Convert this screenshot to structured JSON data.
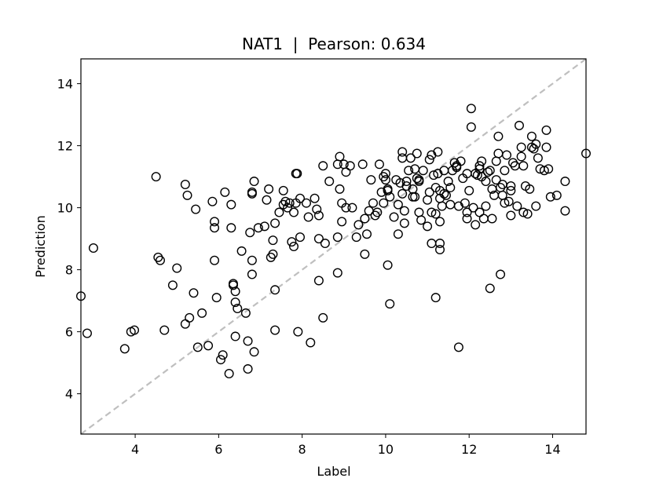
{
  "chart_data": {
    "type": "scatter",
    "title": "NAT1  |  Pearson: 0.634",
    "xlabel": "Label",
    "ylabel": "Prediction",
    "xlim": [
      2.7,
      14.8
    ],
    "ylim": [
      2.7,
      14.8
    ],
    "xticks": [
      4,
      6,
      8,
      10,
      12,
      14
    ],
    "yticks": [
      4,
      6,
      8,
      10,
      12,
      14
    ],
    "xtick_labels": [
      "4",
      "6",
      "8",
      "10",
      "12",
      "14"
    ],
    "ytick_labels": [
      "4",
      "6",
      "8",
      "10",
      "12",
      "14"
    ],
    "grid": false,
    "reference_line": {
      "style": "dashed",
      "color": "#bfbfbf",
      "from": [
        2.7,
        2.7
      ],
      "to": [
        14.8,
        14.8
      ]
    },
    "marker": {
      "shape": "open-circle",
      "edge_color": "#000000"
    },
    "points": [
      [
        2.7,
        7.15
      ],
      [
        2.85,
        5.95
      ],
      [
        3.0,
        8.7
      ],
      [
        3.75,
        5.45
      ],
      [
        3.9,
        6.0
      ],
      [
        3.98,
        6.05
      ],
      [
        4.5,
        11.0
      ],
      [
        4.55,
        8.4
      ],
      [
        4.6,
        8.3
      ],
      [
        4.7,
        6.05
      ],
      [
        4.9,
        7.5
      ],
      [
        5.0,
        8.05
      ],
      [
        5.2,
        10.75
      ],
      [
        5.25,
        10.4
      ],
      [
        5.2,
        6.25
      ],
      [
        5.3,
        6.45
      ],
      [
        5.4,
        7.25
      ],
      [
        5.45,
        9.95
      ],
      [
        5.5,
        5.5
      ],
      [
        5.6,
        6.6
      ],
      [
        5.75,
        5.55
      ],
      [
        5.85,
        10.2
      ],
      [
        5.9,
        9.55
      ],
      [
        5.9,
        9.35
      ],
      [
        5.9,
        8.3
      ],
      [
        5.95,
        7.1
      ],
      [
        6.05,
        5.1
      ],
      [
        6.1,
        5.25
      ],
      [
        6.15,
        10.5
      ],
      [
        6.25,
        4.65
      ],
      [
        6.3,
        10.1
      ],
      [
        6.3,
        9.35
      ],
      [
        6.35,
        7.55
      ],
      [
        6.35,
        7.5
      ],
      [
        6.4,
        6.95
      ],
      [
        6.4,
        7.3
      ],
      [
        6.45,
        6.75
      ],
      [
        6.4,
        5.85
      ],
      [
        6.55,
        8.6
      ],
      [
        6.65,
        6.6
      ],
      [
        6.7,
        5.7
      ],
      [
        6.7,
        4.8
      ],
      [
        6.75,
        9.2
      ],
      [
        6.8,
        10.5
      ],
      [
        6.8,
        10.45
      ],
      [
        6.85,
        10.85
      ],
      [
        6.8,
        8.3
      ],
      [
        6.8,
        7.85
      ],
      [
        6.85,
        5.35
      ],
      [
        6.95,
        9.35
      ],
      [
        7.1,
        9.4
      ],
      [
        7.15,
        10.25
      ],
      [
        7.2,
        10.6
      ],
      [
        7.25,
        8.4
      ],
      [
        7.3,
        8.5
      ],
      [
        7.3,
        8.95
      ],
      [
        7.35,
        9.5
      ],
      [
        7.35,
        7.35
      ],
      [
        7.35,
        6.05
      ],
      [
        7.45,
        9.85
      ],
      [
        7.55,
        10.55
      ],
      [
        7.55,
        10.1
      ],
      [
        7.6,
        10.2
      ],
      [
        7.65,
        10.0
      ],
      [
        7.7,
        10.15
      ],
      [
        7.75,
        8.9
      ],
      [
        7.8,
        9.85
      ],
      [
        7.8,
        8.75
      ],
      [
        7.85,
        10.15
      ],
      [
        7.85,
        11.1
      ],
      [
        7.88,
        11.1
      ],
      [
        7.9,
        6.0
      ],
      [
        7.95,
        10.3
      ],
      [
        7.95,
        9.05
      ],
      [
        8.1,
        10.15
      ],
      [
        8.15,
        9.7
      ],
      [
        8.2,
        5.65
      ],
      [
        8.3,
        10.3
      ],
      [
        8.35,
        9.95
      ],
      [
        8.4,
        9.75
      ],
      [
        8.4,
        9.0
      ],
      [
        8.4,
        7.65
      ],
      [
        8.5,
        6.45
      ],
      [
        8.5,
        11.35
      ],
      [
        8.55,
        8.85
      ],
      [
        8.65,
        10.85
      ],
      [
        8.85,
        11.4
      ],
      [
        8.85,
        9.05
      ],
      [
        8.85,
        7.9
      ],
      [
        8.9,
        11.65
      ],
      [
        8.9,
        10.6
      ],
      [
        8.95,
        9.55
      ],
      [
        8.95,
        10.15
      ],
      [
        9.0,
        11.4
      ],
      [
        9.05,
        11.15
      ],
      [
        9.05,
        10.0
      ],
      [
        9.15,
        11.35
      ],
      [
        9.2,
        10.0
      ],
      [
        9.3,
        9.05
      ],
      [
        9.35,
        9.45
      ],
      [
        9.45,
        11.4
      ],
      [
        9.5,
        8.5
      ],
      [
        9.5,
        9.65
      ],
      [
        9.55,
        9.15
      ],
      [
        9.6,
        9.9
      ],
      [
        9.65,
        10.9
      ],
      [
        9.7,
        10.15
      ],
      [
        9.75,
        9.75
      ],
      [
        9.8,
        9.85
      ],
      [
        9.85,
        11.4
      ],
      [
        9.9,
        10.5
      ],
      [
        9.95,
        11.0
      ],
      [
        9.95,
        10.15
      ],
      [
        10.0,
        10.9
      ],
      [
        10.0,
        11.1
      ],
      [
        10.05,
        10.55
      ],
      [
        10.05,
        10.6
      ],
      [
        10.1,
        10.35
      ],
      [
        10.05,
        8.15
      ],
      [
        10.1,
        6.9
      ],
      [
        10.2,
        9.7
      ],
      [
        10.25,
        10.9
      ],
      [
        10.3,
        9.15
      ],
      [
        10.3,
        10.1
      ],
      [
        10.35,
        10.8
      ],
      [
        10.4,
        11.6
      ],
      [
        10.4,
        11.8
      ],
      [
        10.4,
        10.45
      ],
      [
        10.45,
        9.9
      ],
      [
        10.45,
        9.5
      ],
      [
        10.5,
        10.7
      ],
      [
        10.5,
        10.85
      ],
      [
        10.55,
        11.2
      ],
      [
        10.6,
        11.6
      ],
      [
        10.65,
        10.6
      ],
      [
        10.65,
        10.35
      ],
      [
        10.7,
        10.35
      ],
      [
        10.7,
        11.25
      ],
      [
        10.75,
        10.95
      ],
      [
        10.75,
        11.75
      ],
      [
        10.8,
        10.85
      ],
      [
        10.8,
        10.9
      ],
      [
        10.8,
        9.85
      ],
      [
        10.85,
        9.6
      ],
      [
        10.9,
        11.2
      ],
      [
        11.0,
        10.25
      ],
      [
        11.0,
        9.4
      ],
      [
        11.05,
        10.5
      ],
      [
        11.05,
        11.55
      ],
      [
        11.1,
        11.7
      ],
      [
        11.1,
        8.85
      ],
      [
        11.1,
        9.85
      ],
      [
        11.15,
        11.05
      ],
      [
        11.2,
        10.65
      ],
      [
        11.2,
        9.8
      ],
      [
        11.2,
        7.1
      ],
      [
        11.25,
        11.8
      ],
      [
        11.25,
        11.1
      ],
      [
        11.3,
        10.55
      ],
      [
        11.3,
        10.3
      ],
      [
        11.3,
        9.55
      ],
      [
        11.3,
        8.85
      ],
      [
        11.3,
        8.65
      ],
      [
        11.35,
        10.05
      ],
      [
        11.4,
        11.2
      ],
      [
        11.4,
        10.45
      ],
      [
        11.45,
        10.4
      ],
      [
        11.5,
        10.85
      ],
      [
        11.55,
        10.65
      ],
      [
        11.55,
        10.1
      ],
      [
        11.6,
        11.2
      ],
      [
        11.65,
        11.45
      ],
      [
        11.7,
        11.35
      ],
      [
        11.7,
        11.3
      ],
      [
        11.75,
        5.5
      ],
      [
        11.75,
        10.05
      ],
      [
        11.8,
        11.5
      ],
      [
        11.85,
        10.95
      ],
      [
        11.9,
        10.15
      ],
      [
        11.95,
        11.1
      ],
      [
        11.95,
        9.85
      ],
      [
        11.95,
        9.65
      ],
      [
        12.0,
        10.55
      ],
      [
        12.05,
        13.2
      ],
      [
        12.05,
        12.6
      ],
      [
        12.1,
        10.0
      ],
      [
        12.15,
        11.1
      ],
      [
        12.15,
        9.45
      ],
      [
        12.2,
        11.05
      ],
      [
        12.25,
        11.35
      ],
      [
        12.25,
        9.85
      ],
      [
        12.25,
        11.25
      ],
      [
        12.3,
        11.5
      ],
      [
        12.3,
        11.0
      ],
      [
        12.35,
        9.65
      ],
      [
        12.4,
        10.85
      ],
      [
        12.4,
        10.05
      ],
      [
        12.45,
        11.15
      ],
      [
        12.5,
        11.2
      ],
      [
        12.5,
        7.4
      ],
      [
        12.55,
        10.6
      ],
      [
        12.55,
        9.65
      ],
      [
        12.6,
        10.4
      ],
      [
        12.65,
        10.9
      ],
      [
        12.65,
        11.5
      ],
      [
        12.7,
        12.3
      ],
      [
        12.7,
        11.75
      ],
      [
        12.75,
        10.65
      ],
      [
        12.75,
        7.85
      ],
      [
        12.8,
        10.75
      ],
      [
        12.8,
        10.4
      ],
      [
        12.85,
        11.2
      ],
      [
        12.85,
        10.15
      ],
      [
        12.9,
        11.7
      ],
      [
        12.95,
        10.2
      ],
      [
        13.0,
        10.7
      ],
      [
        13.0,
        10.55
      ],
      [
        13.0,
        9.75
      ],
      [
        13.05,
        11.45
      ],
      [
        13.1,
        11.35
      ],
      [
        13.15,
        10.05
      ],
      [
        13.2,
        12.65
      ],
      [
        13.25,
        11.95
      ],
      [
        13.25,
        11.65
      ],
      [
        13.3,
        11.35
      ],
      [
        13.3,
        9.85
      ],
      [
        13.35,
        10.7
      ],
      [
        13.4,
        9.8
      ],
      [
        13.45,
        10.6
      ],
      [
        13.5,
        12.3
      ],
      [
        13.5,
        11.95
      ],
      [
        13.55,
        11.9
      ],
      [
        13.6,
        12.05
      ],
      [
        13.6,
        10.05
      ],
      [
        13.65,
        11.6
      ],
      [
        13.7,
        11.25
      ],
      [
        13.8,
        11.2
      ],
      [
        13.85,
        11.95
      ],
      [
        13.85,
        12.5
      ],
      [
        13.9,
        11.25
      ],
      [
        13.95,
        10.35
      ],
      [
        14.1,
        10.4
      ],
      [
        14.3,
        10.85
      ],
      [
        14.3,
        9.9
      ],
      [
        14.8,
        11.75
      ]
    ]
  }
}
